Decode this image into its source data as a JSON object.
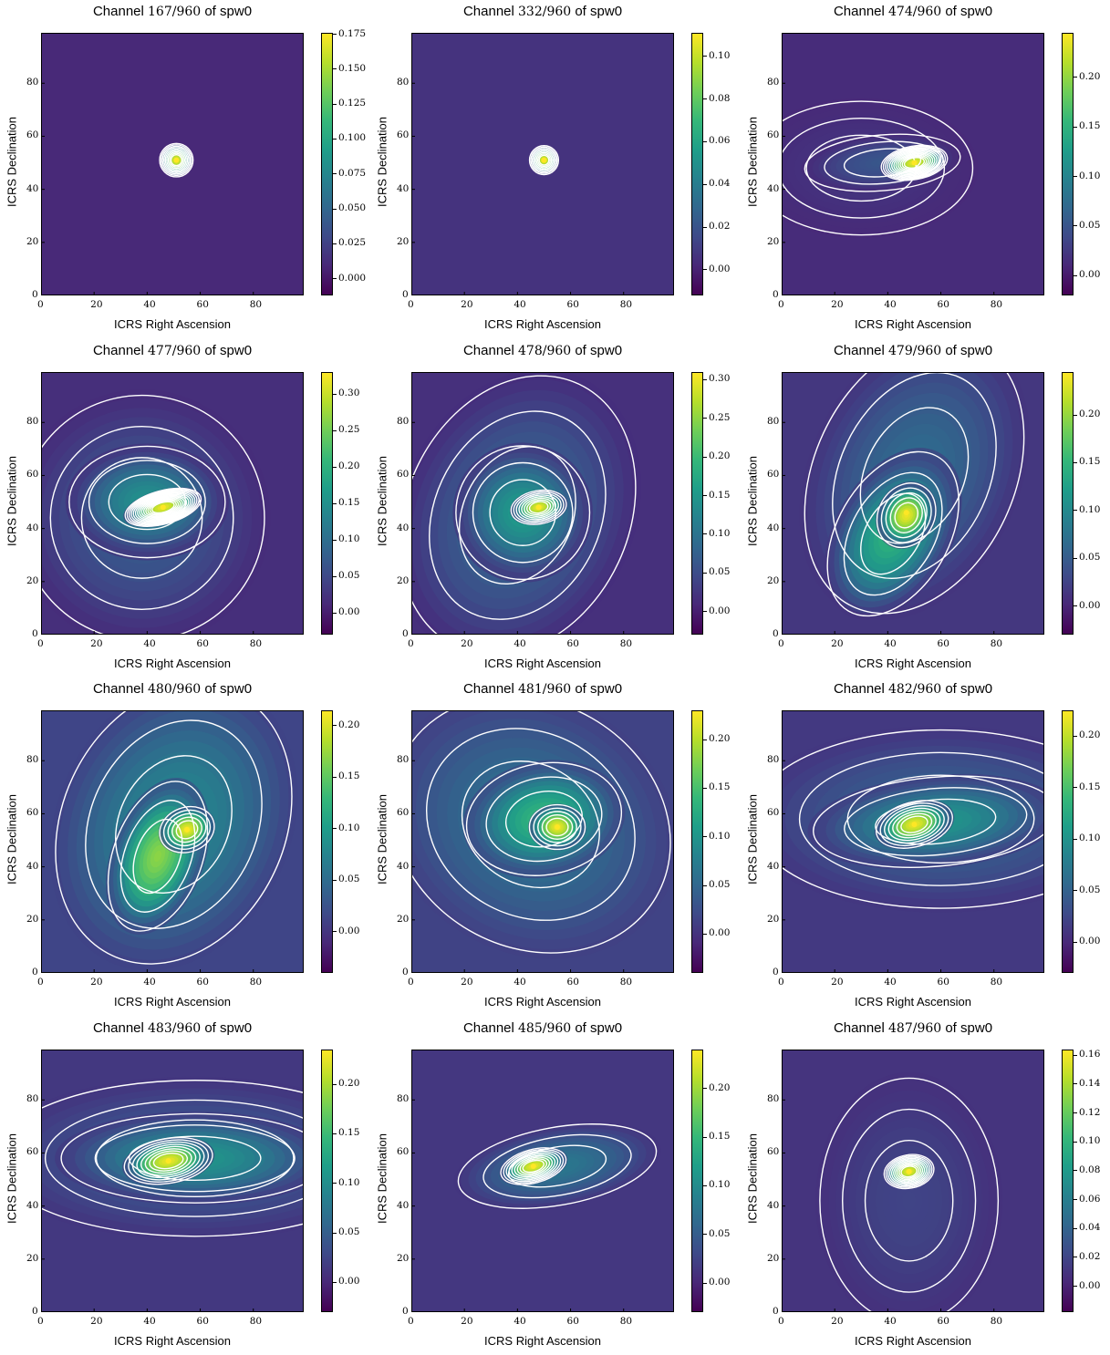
{
  "chart_data": [
    {
      "type": "heatmap",
      "title_prefix": "Channel",
      "channel": "167/960",
      "title_suffix": "of spw0",
      "xlabel": "ICRS Right Ascension",
      "ylabel": "ICRS Declination",
      "xlim": [
        0,
        99
      ],
      "ylim": [
        0,
        99
      ],
      "xticks": [
        "0",
        "20",
        "40",
        "60",
        "80"
      ],
      "yticks": [
        "0",
        "20",
        "40",
        "60",
        "80"
      ],
      "colorbar": {
        "min": -0.012,
        "max": 0.176,
        "ticks": [
          "0.000",
          "0.025",
          "0.050",
          "0.075",
          "0.100",
          "0.125",
          "0.150",
          "0.175"
        ]
      },
      "peak": {
        "x": 51,
        "y": 51,
        "value": 0.175
      },
      "emission_shape": "compact point source",
      "contours": "white"
    },
    {
      "type": "heatmap",
      "title_prefix": "Channel",
      "channel": "332/960",
      "title_suffix": "of spw0",
      "xlabel": "ICRS Right Ascension",
      "ylabel": "ICRS Declination",
      "xlim": [
        0,
        99
      ],
      "ylim": [
        0,
        99
      ],
      "xticks": [
        "0",
        "20",
        "40",
        "60",
        "80"
      ],
      "yticks": [
        "0",
        "20",
        "40",
        "60",
        "80"
      ],
      "colorbar": {
        "min": -0.012,
        "max": 0.111,
        "ticks": [
          "0.00",
          "0.02",
          "0.04",
          "0.06",
          "0.08",
          "0.10"
        ]
      },
      "peak": {
        "x": 50,
        "y": 51,
        "value": 0.11
      },
      "emission_shape": "compact point source",
      "contours": "white"
    },
    {
      "type": "heatmap",
      "title_prefix": "Channel",
      "channel": "474/960",
      "title_suffix": "of spw0",
      "xlabel": "ICRS Right Ascension",
      "ylabel": "ICRS Declination",
      "xlim": [
        0,
        99
      ],
      "ylim": [
        0,
        99
      ],
      "xticks": [
        "0",
        "20",
        "40",
        "60",
        "80"
      ],
      "yticks": [
        "0",
        "20",
        "40",
        "60",
        "80"
      ],
      "colorbar": {
        "min": -0.02,
        "max": 0.245,
        "ticks": [
          "0.00",
          "0.05",
          "0.10",
          "0.15",
          "0.20"
        ]
      },
      "peak": {
        "x": 50,
        "y": 50,
        "value": 0.24
      },
      "emission_shape": "elongated east-west with extended wings",
      "contours": "white"
    },
    {
      "type": "heatmap",
      "title_prefix": "Channel",
      "channel": "477/960",
      "title_suffix": "of spw0",
      "xlabel": "ICRS Right Ascension",
      "ylabel": "ICRS Declination",
      "xlim": [
        0,
        99
      ],
      "ylim": [
        0,
        99
      ],
      "xticks": [
        "0",
        "20",
        "40",
        "60",
        "80"
      ],
      "yticks": [
        "0",
        "20",
        "40",
        "60",
        "80"
      ],
      "colorbar": {
        "min": -0.03,
        "max": 0.33,
        "ticks": [
          "0.00",
          "0.05",
          "0.10",
          "0.15",
          "0.20",
          "0.25",
          "0.30"
        ]
      },
      "peak": {
        "x": 46,
        "y": 48,
        "value": 0.33
      },
      "emission_shape": "bright elongated core with broad extended envelope",
      "contours": "white"
    },
    {
      "type": "heatmap",
      "title_prefix": "Channel",
      "channel": "478/960",
      "title_suffix": "of spw0",
      "xlabel": "ICRS Right Ascension",
      "ylabel": "ICRS Declination",
      "xlim": [
        0,
        99
      ],
      "ylim": [
        0,
        99
      ],
      "xticks": [
        "0",
        "20",
        "40",
        "60",
        "80"
      ],
      "yticks": [
        "0",
        "20",
        "40",
        "60",
        "80"
      ],
      "colorbar": {
        "min": -0.03,
        "max": 0.31,
        "ticks": [
          "0.00",
          "0.05",
          "0.10",
          "0.15",
          "0.20",
          "0.25",
          "0.30"
        ]
      },
      "peak": {
        "x": 48,
        "y": 48,
        "value": 0.3
      },
      "emission_shape": "extended diagonal structure",
      "contours": "white"
    },
    {
      "type": "heatmap",
      "title_prefix": "Channel",
      "channel": "479/960",
      "title_suffix": "of spw0",
      "xlabel": "ICRS Right Ascension",
      "ylabel": "ICRS Declination",
      "xlim": [
        0,
        99
      ],
      "ylim": [
        0,
        99
      ],
      "xticks": [
        "0",
        "20",
        "40",
        "60",
        "80"
      ],
      "yticks": [
        "0",
        "20",
        "40",
        "60",
        "80"
      ],
      "colorbar": {
        "min": -0.03,
        "max": 0.245,
        "ticks": [
          "0.00",
          "0.05",
          "0.10",
          "0.15",
          "0.20"
        ]
      },
      "peak": {
        "x": 47,
        "y": 46,
        "value": 0.24
      },
      "emission_shape": "extended diagonal structure",
      "contours": "white"
    },
    {
      "type": "heatmap",
      "title_prefix": "Channel",
      "channel": "480/960",
      "title_suffix": "of spw0",
      "xlabel": "ICRS Right Ascension",
      "ylabel": "ICRS Declination",
      "xlim": [
        0,
        99
      ],
      "ylim": [
        0,
        99
      ],
      "xticks": [
        "0",
        "20",
        "40",
        "60",
        "80"
      ],
      "yticks": [
        "0",
        "20",
        "40",
        "60",
        "80"
      ],
      "colorbar": {
        "min": -0.04,
        "max": 0.215,
        "ticks": [
          "0.00",
          "0.05",
          "0.10",
          "0.15",
          "0.20"
        ]
      },
      "peak": {
        "x": 55,
        "y": 54,
        "value": 0.21
      },
      "emission_shape": "extended filamentary structure",
      "contours": "white"
    },
    {
      "type": "heatmap",
      "title_prefix": "Channel",
      "channel": "481/960",
      "title_suffix": "of spw0",
      "xlabel": "ICRS Right Ascension",
      "ylabel": "ICRS Declination",
      "xlim": [
        0,
        99
      ],
      "ylim": [
        0,
        99
      ],
      "xticks": [
        "0",
        "20",
        "40",
        "60",
        "80"
      ],
      "yticks": [
        "0",
        "20",
        "40",
        "60",
        "80"
      ],
      "colorbar": {
        "min": -0.04,
        "max": 0.23,
        "ticks": [
          "0.00",
          "0.05",
          "0.10",
          "0.15",
          "0.20"
        ]
      },
      "peak": {
        "x": 55,
        "y": 55,
        "value": 0.22
      },
      "emission_shape": "extended structure with tail",
      "contours": "white"
    },
    {
      "type": "heatmap",
      "title_prefix": "Channel",
      "channel": "482/960",
      "title_suffix": "of spw0",
      "xlabel": "ICRS Right Ascension",
      "ylabel": "ICRS Declination",
      "xlim": [
        0,
        99
      ],
      "ylim": [
        0,
        99
      ],
      "xticks": [
        "0",
        "20",
        "40",
        "60",
        "80"
      ],
      "yticks": [
        "0",
        "20",
        "40",
        "60",
        "80"
      ],
      "colorbar": {
        "min": -0.03,
        "max": 0.225,
        "ticks": [
          "0.00",
          "0.05",
          "0.10",
          "0.15",
          "0.20"
        ]
      },
      "peak": {
        "x": 50,
        "y": 56,
        "value": 0.22
      },
      "emission_shape": "elongated structure extending east",
      "contours": "white"
    },
    {
      "type": "heatmap",
      "title_prefix": "Channel",
      "channel": "483/960",
      "title_suffix": "of spw0",
      "xlabel": "ICRS Right Ascension",
      "ylabel": "ICRS Declination",
      "xlim": [
        0,
        99
      ],
      "ylim": [
        0,
        99
      ],
      "xticks": [
        "0",
        "20",
        "40",
        "60",
        "80"
      ],
      "yticks": [
        "0",
        "20",
        "40",
        "60",
        "80"
      ],
      "colorbar": {
        "min": -0.03,
        "max": 0.235,
        "ticks": [
          "0.00",
          "0.05",
          "0.10",
          "0.15",
          "0.20"
        ]
      },
      "peak": {
        "x": 48,
        "y": 57,
        "value": 0.23
      },
      "emission_shape": "elongated structure extending east",
      "contours": "white"
    },
    {
      "type": "heatmap",
      "title_prefix": "Channel",
      "channel": "485/960",
      "title_suffix": "of spw0",
      "xlabel": "ICRS Right Ascension",
      "ylabel": "ICRS Declination",
      "xlim": [
        0,
        99
      ],
      "ylim": [
        0,
        99
      ],
      "xticks": [
        "0",
        "20",
        "40",
        "60",
        "80"
      ],
      "yticks": [
        "0",
        "20",
        "40",
        "60",
        "80"
      ],
      "colorbar": {
        "min": -0.03,
        "max": 0.24,
        "ticks": [
          "0.00",
          "0.05",
          "0.10",
          "0.15",
          "0.20"
        ]
      },
      "peak": {
        "x": 46,
        "y": 55,
        "value": 0.235
      },
      "emission_shape": "compact elongated source",
      "contours": "white"
    },
    {
      "type": "heatmap",
      "title_prefix": "Channel",
      "channel": "487/960",
      "title_suffix": "of spw0",
      "xlabel": "ICRS Right Ascension",
      "ylabel": "ICRS Declination",
      "xlim": [
        0,
        99
      ],
      "ylim": [
        0,
        99
      ],
      "xticks": [
        "0",
        "20",
        "40",
        "60",
        "80"
      ],
      "yticks": [
        "0",
        "20",
        "40",
        "60",
        "80"
      ],
      "colorbar": {
        "min": -0.018,
        "max": 0.164,
        "ticks": [
          "0.00",
          "0.02",
          "0.04",
          "0.06",
          "0.08",
          "0.10",
          "0.12",
          "0.14",
          "0.16"
        ]
      },
      "peak": {
        "x": 48,
        "y": 53,
        "value": 0.16
      },
      "emission_shape": "compact source with faint extended wings",
      "contours": "white"
    }
  ]
}
